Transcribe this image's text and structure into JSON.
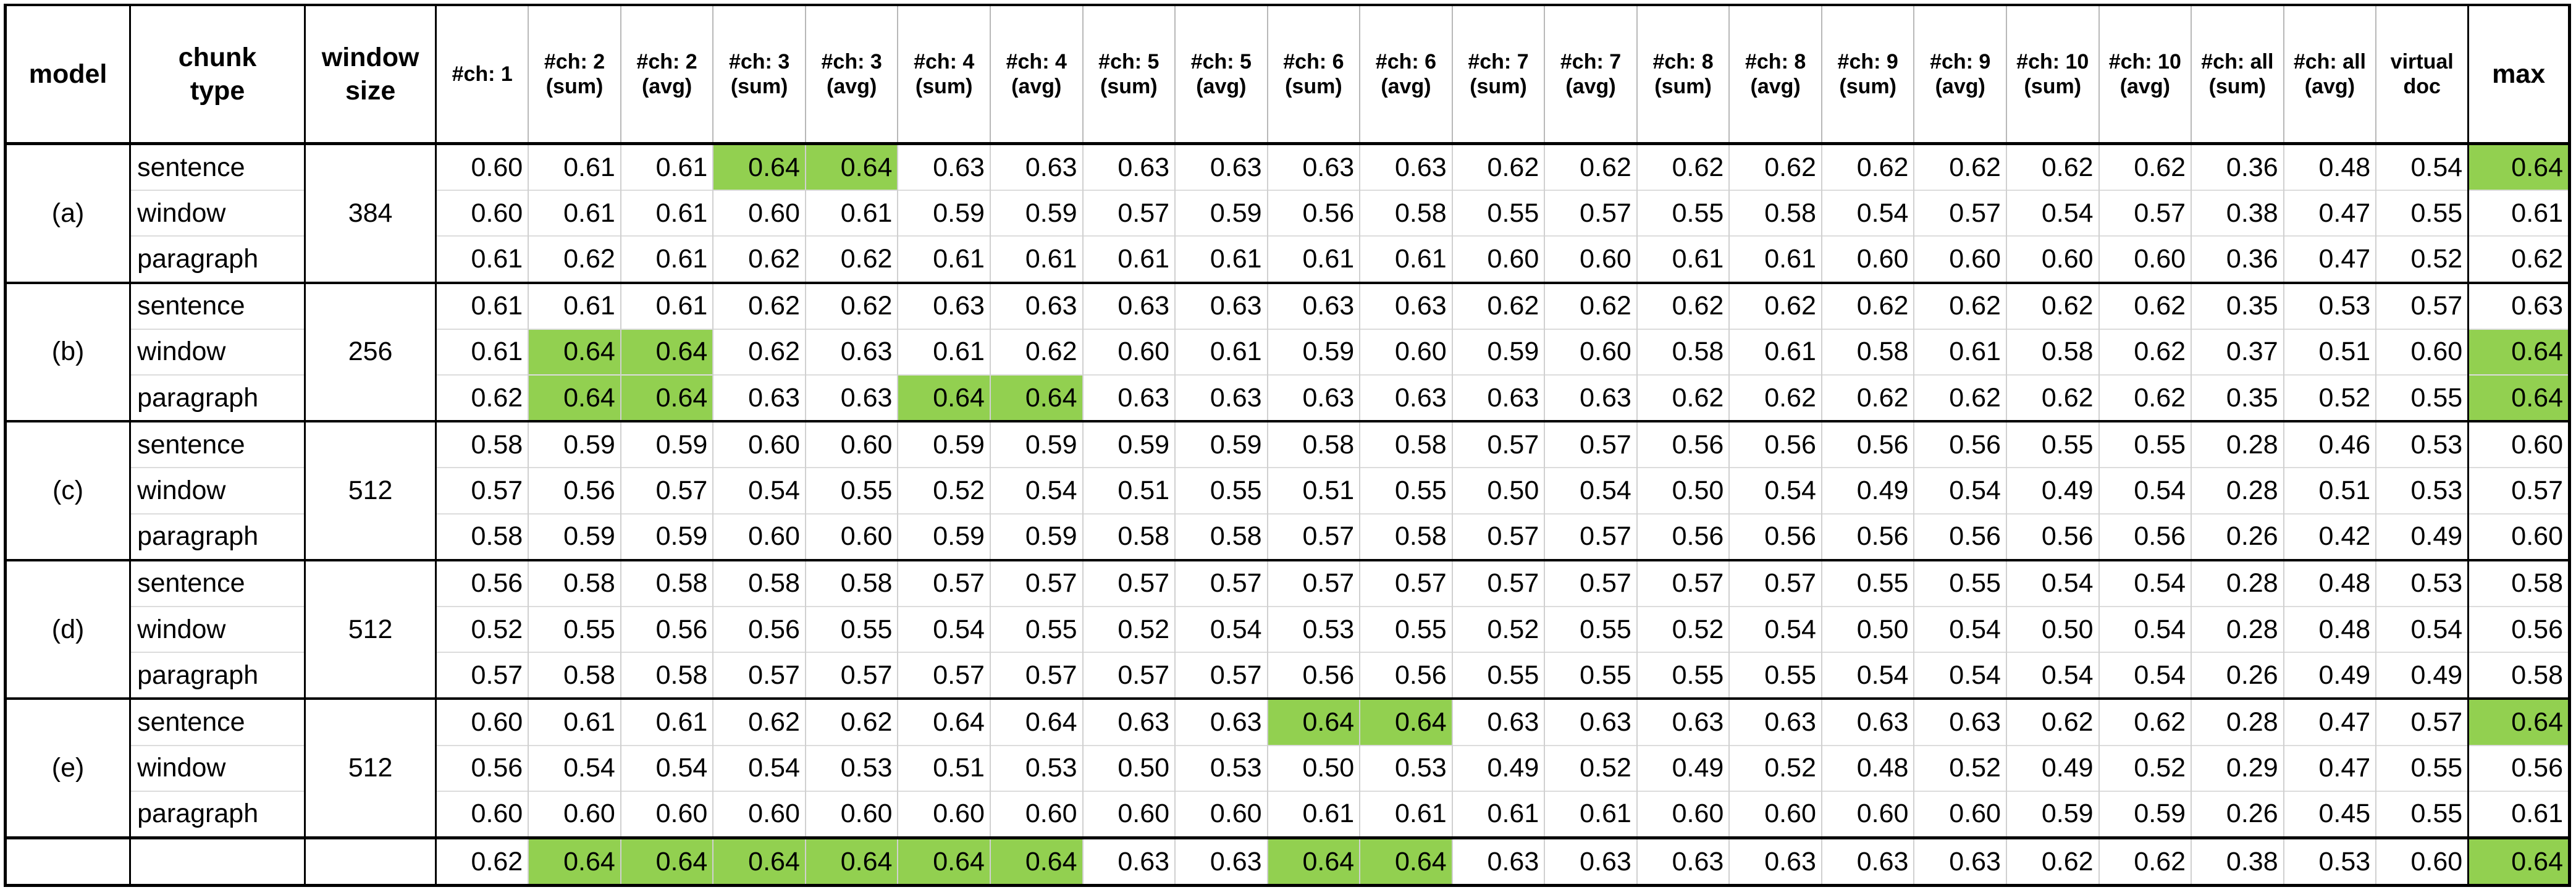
{
  "highlight_color": "#92d050",
  "columns": [
    {
      "lines": [
        "model"
      ],
      "big": true
    },
    {
      "lines": [
        "chunk",
        "type"
      ],
      "big": true
    },
    {
      "lines": [
        "window",
        "size"
      ],
      "big": true
    },
    {
      "lines": [
        "#ch: 1"
      ]
    },
    {
      "lines": [
        "#ch: 2",
        "(sum)"
      ]
    },
    {
      "lines": [
        "#ch: 2",
        "(avg)"
      ]
    },
    {
      "lines": [
        "#ch: 3",
        "(sum)"
      ]
    },
    {
      "lines": [
        "#ch: 3",
        "(avg)"
      ]
    },
    {
      "lines": [
        "#ch: 4",
        "(sum)"
      ]
    },
    {
      "lines": [
        "#ch: 4",
        "(avg)"
      ]
    },
    {
      "lines": [
        "#ch: 5",
        "(sum)"
      ]
    },
    {
      "lines": [
        "#ch: 5",
        "(avg)"
      ]
    },
    {
      "lines": [
        "#ch: 6",
        "(sum)"
      ]
    },
    {
      "lines": [
        "#ch: 6",
        "(avg)"
      ]
    },
    {
      "lines": [
        "#ch: 7",
        "(sum)"
      ]
    },
    {
      "lines": [
        "#ch: 7",
        "(avg)"
      ]
    },
    {
      "lines": [
        "#ch: 8",
        "(sum)"
      ]
    },
    {
      "lines": [
        "#ch: 8",
        "(avg)"
      ]
    },
    {
      "lines": [
        "#ch: 9",
        "(sum)"
      ]
    },
    {
      "lines": [
        "#ch: 9",
        "(avg)"
      ]
    },
    {
      "lines": [
        "#ch: 10",
        "(sum)"
      ]
    },
    {
      "lines": [
        "#ch: 10",
        "(avg)"
      ]
    },
    {
      "lines": [
        "#ch: all",
        "(sum)"
      ]
    },
    {
      "lines": [
        "#ch: all",
        "(avg)"
      ]
    },
    {
      "lines": [
        "virtual",
        "doc"
      ]
    },
    {
      "lines": [
        "max"
      ],
      "big": true
    }
  ],
  "groups": [
    {
      "model": "(a)",
      "window": "384",
      "rows": [
        {
          "type": "sentence",
          "values": [
            "0.60",
            "0.61",
            "0.61",
            "0.64",
            "0.64",
            "0.63",
            "0.63",
            "0.63",
            "0.63",
            "0.63",
            "0.63",
            "0.62",
            "0.62",
            "0.62",
            "0.62",
            "0.62",
            "0.62",
            "0.62",
            "0.62",
            "0.36",
            "0.48",
            "0.54",
            "0.64"
          ],
          "highlight": [
            3,
            4,
            22
          ]
        },
        {
          "type": "window",
          "values": [
            "0.60",
            "0.61",
            "0.61",
            "0.60",
            "0.61",
            "0.59",
            "0.59",
            "0.57",
            "0.59",
            "0.56",
            "0.58",
            "0.55",
            "0.57",
            "0.55",
            "0.58",
            "0.54",
            "0.57",
            "0.54",
            "0.57",
            "0.38",
            "0.47",
            "0.55",
            "0.61"
          ],
          "highlight": []
        },
        {
          "type": "paragraph",
          "values": [
            "0.61",
            "0.62",
            "0.61",
            "0.62",
            "0.62",
            "0.61",
            "0.61",
            "0.61",
            "0.61",
            "0.61",
            "0.61",
            "0.60",
            "0.60",
            "0.61",
            "0.61",
            "0.60",
            "0.60",
            "0.60",
            "0.60",
            "0.36",
            "0.47",
            "0.52",
            "0.62"
          ],
          "highlight": []
        }
      ]
    },
    {
      "model": "(b)",
      "window": "256",
      "rows": [
        {
          "type": "sentence",
          "values": [
            "0.61",
            "0.61",
            "0.61",
            "0.62",
            "0.62",
            "0.63",
            "0.63",
            "0.63",
            "0.63",
            "0.63",
            "0.63",
            "0.62",
            "0.62",
            "0.62",
            "0.62",
            "0.62",
            "0.62",
            "0.62",
            "0.62",
            "0.35",
            "0.53",
            "0.57",
            "0.63"
          ],
          "highlight": []
        },
        {
          "type": "window",
          "values": [
            "0.61",
            "0.64",
            "0.64",
            "0.62",
            "0.63",
            "0.61",
            "0.62",
            "0.60",
            "0.61",
            "0.59",
            "0.60",
            "0.59",
            "0.60",
            "0.58",
            "0.61",
            "0.58",
            "0.61",
            "0.58",
            "0.62",
            "0.37",
            "0.51",
            "0.60",
            "0.64"
          ],
          "highlight": [
            1,
            2,
            22
          ]
        },
        {
          "type": "paragraph",
          "values": [
            "0.62",
            "0.64",
            "0.64",
            "0.63",
            "0.63",
            "0.64",
            "0.64",
            "0.63",
            "0.63",
            "0.63",
            "0.63",
            "0.63",
            "0.63",
            "0.62",
            "0.62",
            "0.62",
            "0.62",
            "0.62",
            "0.62",
            "0.35",
            "0.52",
            "0.55",
            "0.64"
          ],
          "highlight": [
            1,
            2,
            5,
            6,
            22
          ]
        }
      ]
    },
    {
      "model": "(c)",
      "window": "512",
      "rows": [
        {
          "type": "sentence",
          "values": [
            "0.58",
            "0.59",
            "0.59",
            "0.60",
            "0.60",
            "0.59",
            "0.59",
            "0.59",
            "0.59",
            "0.58",
            "0.58",
            "0.57",
            "0.57",
            "0.56",
            "0.56",
            "0.56",
            "0.56",
            "0.55",
            "0.55",
            "0.28",
            "0.46",
            "0.53",
            "0.60"
          ],
          "highlight": []
        },
        {
          "type": "window",
          "values": [
            "0.57",
            "0.56",
            "0.57",
            "0.54",
            "0.55",
            "0.52",
            "0.54",
            "0.51",
            "0.55",
            "0.51",
            "0.55",
            "0.50",
            "0.54",
            "0.50",
            "0.54",
            "0.49",
            "0.54",
            "0.49",
            "0.54",
            "0.28",
            "0.51",
            "0.53",
            "0.57"
          ],
          "highlight": []
        },
        {
          "type": "paragraph",
          "values": [
            "0.58",
            "0.59",
            "0.59",
            "0.60",
            "0.60",
            "0.59",
            "0.59",
            "0.58",
            "0.58",
            "0.57",
            "0.58",
            "0.57",
            "0.57",
            "0.56",
            "0.56",
            "0.56",
            "0.56",
            "0.56",
            "0.56",
            "0.26",
            "0.42",
            "0.49",
            "0.60"
          ],
          "highlight": []
        }
      ]
    },
    {
      "model": "(d)",
      "window": "512",
      "rows": [
        {
          "type": "sentence",
          "values": [
            "0.56",
            "0.58",
            "0.58",
            "0.58",
            "0.58",
            "0.57",
            "0.57",
            "0.57",
            "0.57",
            "0.57",
            "0.57",
            "0.57",
            "0.57",
            "0.57",
            "0.57",
            "0.55",
            "0.55",
            "0.54",
            "0.54",
            "0.28",
            "0.48",
            "0.53",
            "0.58"
          ],
          "highlight": []
        },
        {
          "type": "window",
          "values": [
            "0.52",
            "0.55",
            "0.56",
            "0.56",
            "0.55",
            "0.54",
            "0.55",
            "0.52",
            "0.54",
            "0.53",
            "0.55",
            "0.52",
            "0.55",
            "0.52",
            "0.54",
            "0.50",
            "0.54",
            "0.50",
            "0.54",
            "0.28",
            "0.48",
            "0.54",
            "0.56"
          ],
          "highlight": []
        },
        {
          "type": "paragraph",
          "values": [
            "0.57",
            "0.58",
            "0.58",
            "0.57",
            "0.57",
            "0.57",
            "0.57",
            "0.57",
            "0.57",
            "0.56",
            "0.56",
            "0.55",
            "0.55",
            "0.55",
            "0.55",
            "0.54",
            "0.54",
            "0.54",
            "0.54",
            "0.26",
            "0.49",
            "0.49",
            "0.58"
          ],
          "highlight": []
        }
      ]
    },
    {
      "model": "(e)",
      "window": "512",
      "rows": [
        {
          "type": "sentence",
          "values": [
            "0.60",
            "0.61",
            "0.61",
            "0.62",
            "0.62",
            "0.64",
            "0.64",
            "0.63",
            "0.63",
            "0.64",
            "0.64",
            "0.63",
            "0.63",
            "0.63",
            "0.63",
            "0.63",
            "0.63",
            "0.62",
            "0.62",
            "0.28",
            "0.47",
            "0.57",
            "0.64"
          ],
          "highlight": [
            9,
            10,
            22
          ]
        },
        {
          "type": "window",
          "values": [
            "0.56",
            "0.54",
            "0.54",
            "0.54",
            "0.53",
            "0.51",
            "0.53",
            "0.50",
            "0.53",
            "0.50",
            "0.53",
            "0.49",
            "0.52",
            "0.49",
            "0.52",
            "0.48",
            "0.52",
            "0.49",
            "0.52",
            "0.29",
            "0.47",
            "0.55",
            "0.56"
          ],
          "highlight": []
        },
        {
          "type": "paragraph",
          "values": [
            "0.60",
            "0.60",
            "0.60",
            "0.60",
            "0.60",
            "0.60",
            "0.60",
            "0.60",
            "0.60",
            "0.61",
            "0.61",
            "0.61",
            "0.61",
            "0.60",
            "0.60",
            "0.60",
            "0.60",
            "0.59",
            "0.59",
            "0.26",
            "0.45",
            "0.55",
            "0.61"
          ],
          "highlight": []
        }
      ]
    }
  ],
  "summary": {
    "values": [
      "0.62",
      "0.64",
      "0.64",
      "0.64",
      "0.64",
      "0.64",
      "0.64",
      "0.63",
      "0.63",
      "0.64",
      "0.64",
      "0.63",
      "0.63",
      "0.63",
      "0.63",
      "0.63",
      "0.63",
      "0.62",
      "0.62",
      "0.38",
      "0.53",
      "0.60",
      "0.64"
    ],
    "highlight": [
      1,
      2,
      3,
      4,
      5,
      6,
      9,
      10,
      22
    ]
  }
}
